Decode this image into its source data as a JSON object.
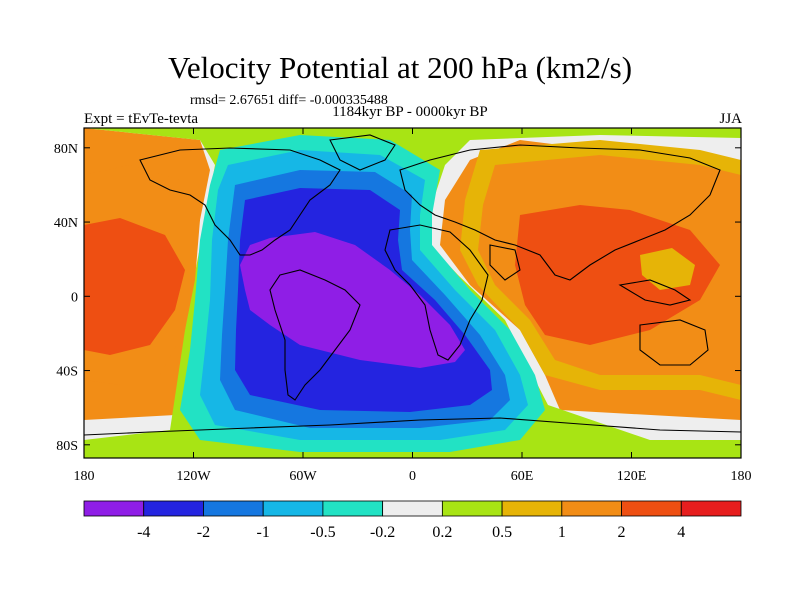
{
  "title": "Velocity Potential at 200 hPa (km2/s)",
  "stats": "rmsd= 2.67651 diff= -0.000335488",
  "left_string": "Expt = tEvTe-tevta",
  "center_string": "1184kyr BP - 0000kyr BP",
  "right_string": "JJA",
  "axes": {
    "x_ticks": [
      "180",
      "120W",
      "60W",
      "0",
      "60E",
      "120E",
      "180"
    ],
    "y_ticks": [
      "80N",
      "40N",
      "0",
      "40S",
      "80S"
    ]
  },
  "colorbar": {
    "labels": [
      "-4",
      "-2",
      "-1",
      "-0.5",
      "-0.2",
      "0.2",
      "0.5",
      "1",
      "2",
      "4"
    ],
    "colors": [
      "#8f1ee6",
      "#2424e0",
      "#1577e0",
      "#16b7e6",
      "#22e2c4",
      "#eeeeee",
      "#a8e414",
      "#e6b407",
      "#f28d16",
      "#ee4f12",
      "#e61e1e"
    ]
  },
  "map_fill_levels": {
    "purple": "#8f1ee6",
    "blue": "#2424e0",
    "mid_blue": "#1577e0",
    "light_blue": "#16b7e6",
    "cyan": "#22e2c4",
    "neutral": "#eeeeee",
    "yellow_green": "#a8e414",
    "gold": "#e6b407",
    "orange": "#f28d16",
    "red_orange": "#ee4f12"
  }
}
